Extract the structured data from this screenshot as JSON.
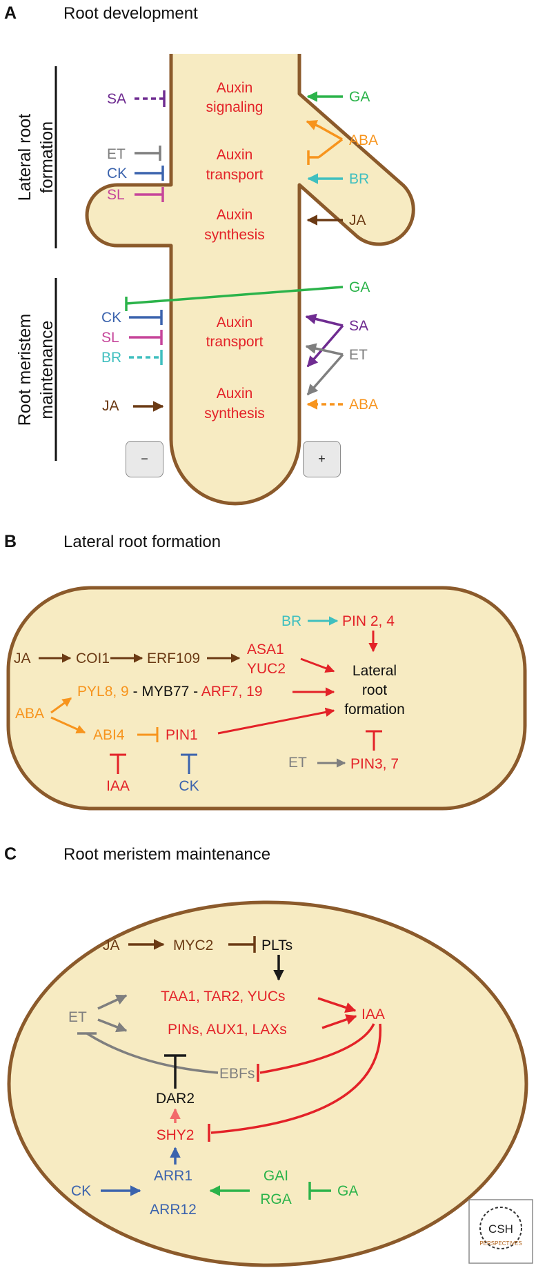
{
  "colors": {
    "fill": "#f7ebc2",
    "outline": "#8b5a2b",
    "red": "#e32228",
    "purple": "#6f2c91",
    "gray": "#7f7f7f",
    "blue": "#3b63ad",
    "pink": "#c6459a",
    "green": "#2bb34a",
    "orange": "#f7941d",
    "teal": "#3fbfbf",
    "brown": "#6b3a14",
    "black": "#1a1a1a"
  },
  "panel_a": {
    "letter": "A",
    "title": "Root development",
    "side_labels": {
      "lateral_1": "Lateral root",
      "lateral_2": "formation",
      "meristem_1": "Root meristem",
      "meristem_2": "maintenance"
    },
    "labels": {
      "sa": "SA",
      "et": "ET",
      "ck": "CK",
      "sl": "SL",
      "ga": "GA",
      "aba": "ABA",
      "br": "BR",
      "ja": "JA",
      "signaling_1": "Auxin",
      "signaling_2": "signaling",
      "transport_1": "Auxin",
      "transport_2": "transport",
      "synthesis_1": "Auxin",
      "synthesis_2": "synthesis",
      "ga2": "GA",
      "ck2": "CK",
      "sl2": "SL",
      "br2": "BR",
      "sa2": "SA",
      "et2": "ET",
      "ja2": "JA",
      "aba2": "ABA",
      "transport2_1": "Auxin",
      "transport2_2": "transport",
      "synthesis2_1": "Auxin",
      "synthesis2_2": "synthesis"
    },
    "buttons": {
      "minus": "−",
      "plus": "+"
    }
  },
  "panel_b": {
    "letter": "B",
    "title": "Lateral root formation",
    "labels": {
      "br": "BR",
      "pin24": "PIN 2, 4",
      "ja": "JA",
      "coi1": "COI1",
      "erf109": "ERF109",
      "asa1": "ASA1",
      "yuc2": "YUC2",
      "lrf_1": "Lateral",
      "lrf_2": "root",
      "lrf_3": "formation",
      "pyl": "PYL8, 9",
      "dash1": " - ",
      "myb77": "MYB77",
      "dash2": " - ",
      "arf": "ARF7, 19",
      "aba": "ABA",
      "abi4": "ABI4",
      "pin1": "PIN1",
      "iaa": "IAA",
      "ck": "CK",
      "et": "ET",
      "pin37": "PIN3, 7"
    }
  },
  "panel_c": {
    "letter": "C",
    "title": "Root meristem maintenance",
    "labels": {
      "ja": "JA",
      "myc2": "MYC2",
      "plts": "PLTs",
      "taa": "TAA1, TAR2, YUCs",
      "pins": "PINs, AUX1, LAXs",
      "iaa": "IAA",
      "et": "ET",
      "ebfs": "EBFs",
      "dar2": "DAR2",
      "shy2": "SHY2",
      "ck": "CK",
      "arr1": "ARR1",
      "arr12": "ARR12",
      "gai": "GAI",
      "rga": "RGA",
      "ga": "GA"
    }
  },
  "logo": {
    "line1": "CSH",
    "line2": "PERSPECTIVES"
  }
}
